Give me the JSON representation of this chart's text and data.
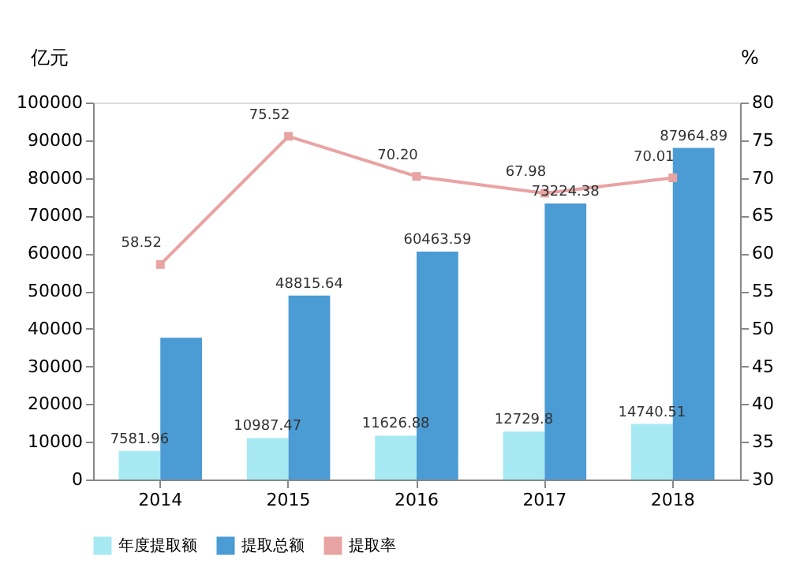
{
  "chart_data": {
    "type": "bar",
    "categories": [
      "2014",
      "2015",
      "2016",
      "2017",
      "2018"
    ],
    "ylabel": "亿元",
    "y2label": "%",
    "ylim": [
      0,
      100000
    ],
    "yticks": [
      0,
      10000,
      20000,
      30000,
      40000,
      50000,
      60000,
      70000,
      80000,
      90000,
      100000
    ],
    "y2lim": [
      30,
      80
    ],
    "y2ticks": [
      30,
      35,
      40,
      45,
      50,
      55,
      60,
      65,
      70,
      75,
      80
    ],
    "legend": "bottom",
    "grid": false,
    "series": [
      {
        "name": "年度提取额",
        "color": "#a6e9f3",
        "values": [
          7581.96,
          10987.47,
          11626.88,
          12729.8,
          14740.51
        ],
        "value_labels": [
          "7581.96",
          "10987.47",
          "11626.88",
          "12729.8",
          "14740.51"
        ]
      },
      {
        "name": "提取总额",
        "color": "#4b9bd5",
        "values": [
          37600,
          48815.64,
          60463.59,
          73224.38,
          87964.89
        ],
        "value_labels": [
          null,
          "48815.64",
          "60463.59",
          "73224.38",
          "87964.89"
        ]
      },
      {
        "name": "提取率",
        "type": "line",
        "axis": "y2",
        "marker": "square",
        "color": "#e8a3a3",
        "values": [
          58.52,
          75.52,
          70.2,
          67.98,
          70.01
        ],
        "value_labels": [
          "58.52",
          "75.52",
          "70.20",
          "67.98",
          "70.01"
        ]
      }
    ]
  }
}
